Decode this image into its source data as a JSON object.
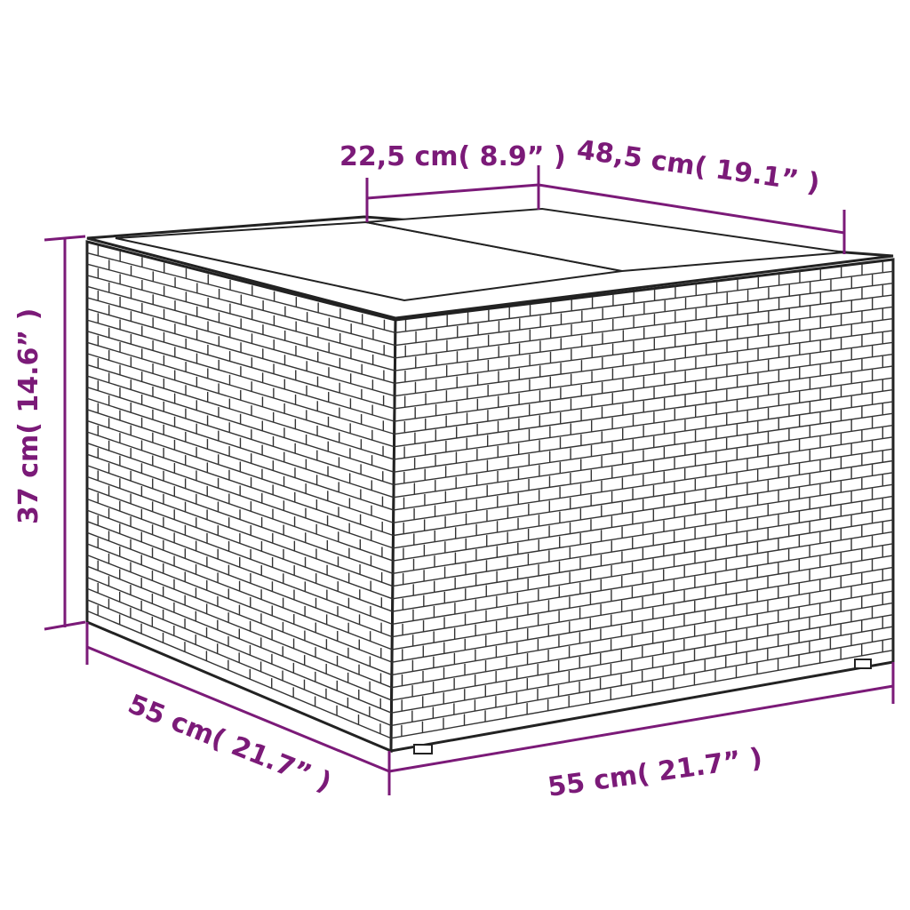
{
  "colors": {
    "dimension": "#7b1a78",
    "outline": "#222222",
    "background": "#ffffff"
  },
  "product": {
    "description_icon": "wicker-storage-table-icon"
  },
  "dimensions": {
    "top_panel_width": "22,5 cm( 8.9” )",
    "top_depth": "48,5 cm( 19.1” )",
    "height": "37 cm( 14.6” )",
    "side_depth": "55 cm( 21.7” )",
    "front_width": "55 cm( 21.7” )"
  }
}
